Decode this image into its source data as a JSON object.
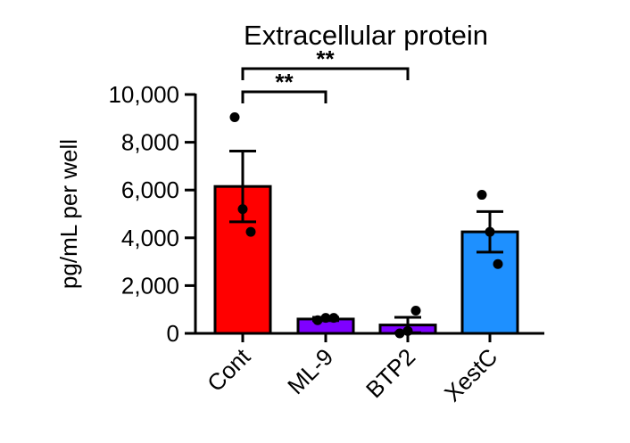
{
  "chart_data": {
    "type": "bar",
    "title": "Extracellular protein",
    "xlabel": "",
    "ylabel": "pg/mL per well",
    "ylim": [
      0,
      10000
    ],
    "yticks": [
      0,
      2000,
      4000,
      6000,
      8000,
      10000
    ],
    "ytick_labels": [
      "0",
      "2,000",
      "4,000",
      "6,000",
      "8,000",
      "10,000"
    ],
    "categories": [
      "Cont",
      "ML-9",
      "BTP2",
      "XestC"
    ],
    "values": [
      6150,
      600,
      350,
      4250
    ],
    "errors": [
      1480,
      70,
      320,
      850
    ],
    "colors": [
      "#ff0000",
      "#7f00ff",
      "#7f00ff",
      "#1e90ff"
    ],
    "points": [
      [
        9050,
        5200,
        4250
      ],
      [
        550,
        650,
        650
      ],
      [
        0,
        100,
        950
      ],
      [
        5800,
        4250,
        2900
      ]
    ],
    "significance": [
      {
        "from": "Cont",
        "to": "ML-9",
        "label": "**"
      },
      {
        "from": "Cont",
        "to": "BTP2",
        "label": "**"
      }
    ],
    "grid": false,
    "legend": "none"
  }
}
